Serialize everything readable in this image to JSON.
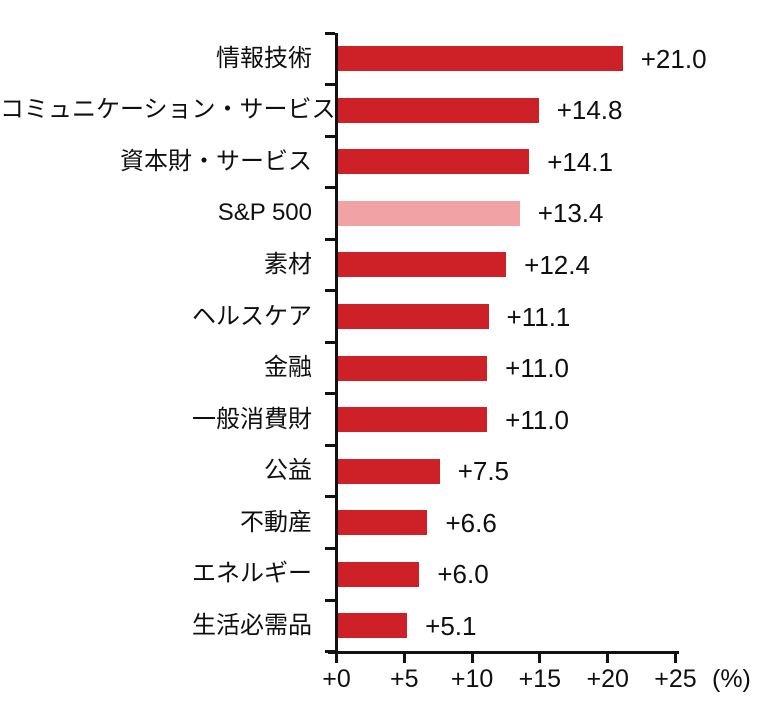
{
  "chart_data": {
    "type": "bar",
    "orientation": "horizontal",
    "title": "",
    "xlabel": "",
    "ylabel": "",
    "categories": [
      "情報技術",
      "コミュニケーション・サービス",
      "資本財・サービス",
      "S&P 500",
      "素材",
      "ヘルスケア",
      "金融",
      "一般消費財",
      "公益",
      "不動産",
      "エネルギー",
      "生活必需品"
    ],
    "values": [
      21.0,
      14.8,
      14.1,
      13.4,
      12.4,
      11.1,
      11.0,
      11.0,
      7.5,
      6.6,
      6.0,
      5.1
    ],
    "value_labels": [
      "+21.0",
      "+14.8",
      "+14.1",
      "+13.4",
      "+12.4",
      "+11.1",
      "+11.0",
      "+11.0",
      "+7.5",
      "+6.6",
      "+6.0",
      "+5.1"
    ],
    "highlight_category": "S&P 500",
    "highlight_index": 3,
    "bar_color": "#CE2127",
    "highlight_bar_color": "#F1A2A4",
    "axis_color": "#121212",
    "text_color": "#0f0f0f",
    "xlim": [
      0,
      25
    ],
    "x_tick_values": [
      0,
      5,
      10,
      15,
      20,
      25
    ],
    "x_tick_labels": [
      "+0",
      "+5",
      "+10",
      "+15",
      "+20",
      "+25"
    ],
    "x_unit": "(%)",
    "grid": false,
    "legend": false
  }
}
